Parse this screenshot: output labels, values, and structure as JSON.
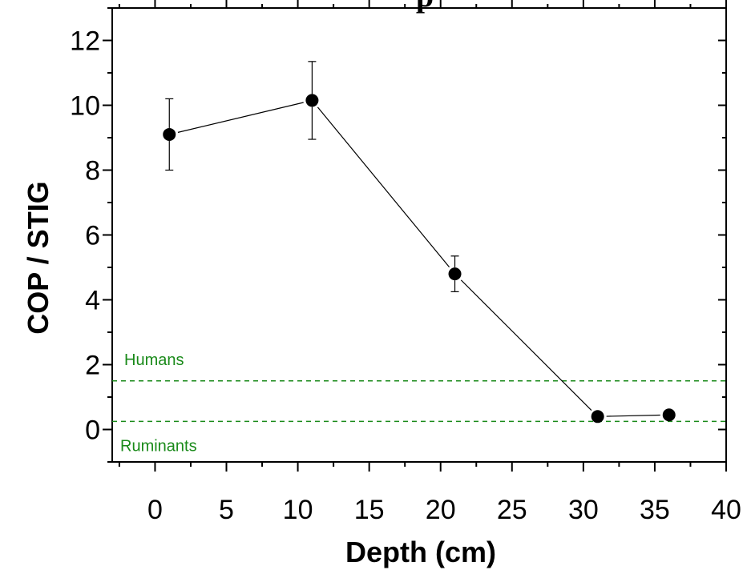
{
  "chart_data": {
    "type": "scatter",
    "title": "p",
    "xlabel": "Depth (cm)",
    "ylabel": "COP / STIG",
    "xlim": [
      -3,
      40
    ],
    "ylim": [
      -1,
      13
    ],
    "x_ticks": [
      0,
      5,
      10,
      15,
      20,
      25,
      30,
      35,
      40
    ],
    "y_ticks": [
      0,
      2,
      4,
      6,
      8,
      10,
      12
    ],
    "series": [
      {
        "x": [
          1,
          11,
          21,
          31,
          36
        ],
        "y": [
          9.1,
          10.15,
          4.8,
          0.4,
          0.45
        ],
        "error": [
          1.1,
          1.2,
          0.55,
          null,
          null
        ],
        "color": "#000000",
        "marker": "circle",
        "line": "solid"
      }
    ],
    "reference_lines": [
      {
        "y": 1.5,
        "label": "Humans",
        "color": "#1a8a1a",
        "style": "dashed",
        "label_position": "above"
      },
      {
        "y": 0.25,
        "label": "Ruminants",
        "color": "#1a8a1a",
        "style": "dashed",
        "label_position": "below"
      }
    ],
    "grid": false,
    "legend": "none"
  }
}
